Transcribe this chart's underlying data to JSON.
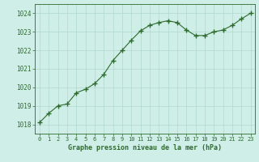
{
  "x": [
    0,
    1,
    2,
    3,
    4,
    5,
    6,
    7,
    8,
    9,
    10,
    11,
    12,
    13,
    14,
    15,
    16,
    17,
    18,
    19,
    20,
    21,
    22,
    23
  ],
  "y": [
    1018.1,
    1018.6,
    1019.0,
    1019.1,
    1019.7,
    1019.9,
    1020.2,
    1020.7,
    1021.45,
    1022.0,
    1022.55,
    1023.05,
    1023.35,
    1023.5,
    1023.6,
    1023.5,
    1023.1,
    1022.8,
    1022.8,
    1023.0,
    1023.1,
    1023.35,
    1023.7,
    1024.0
  ],
  "line_color": "#2d6a2d",
  "marker_color": "#2d6a2d",
  "bg_color": "#d0eee8",
  "grid_color": "#b0d8cc",
  "xlabel": "Graphe pression niveau de la mer (hPa)",
  "xlabel_color": "#2d6a2d",
  "tick_color": "#2d6a2d",
  "ylim": [
    1017.5,
    1024.5
  ],
  "yticks": [
    1018,
    1019,
    1020,
    1021,
    1022,
    1023,
    1024
  ],
  "xlim": [
    -0.5,
    23.5
  ],
  "xticks": [
    0,
    1,
    2,
    3,
    4,
    5,
    6,
    7,
    8,
    9,
    10,
    11,
    12,
    13,
    14,
    15,
    16,
    17,
    18,
    19,
    20,
    21,
    22,
    23
  ]
}
